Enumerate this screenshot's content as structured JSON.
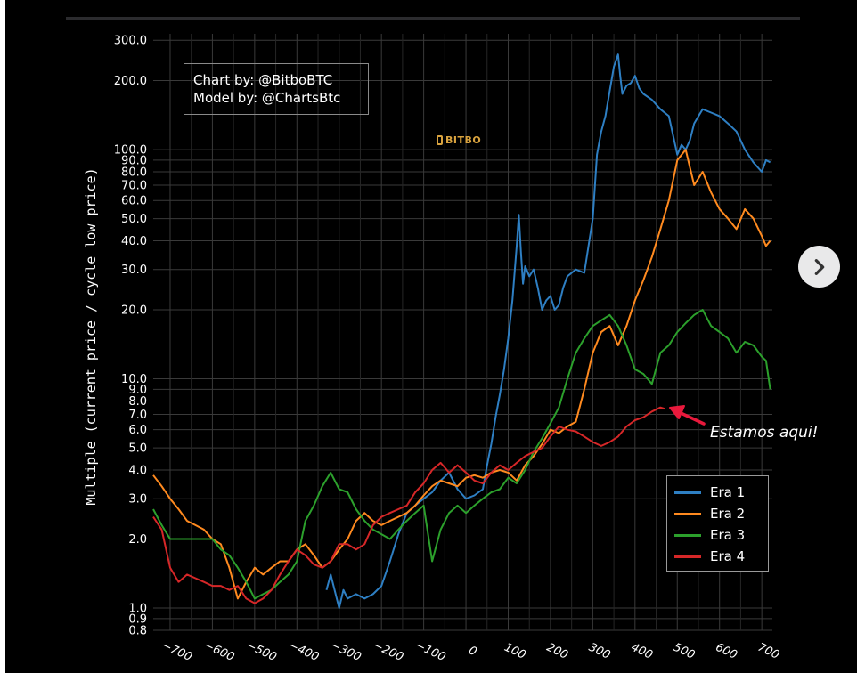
{
  "credits": {
    "chart_by": "Chart by: @BitboBTC",
    "model_by": "Model by: @ChartsBtc"
  },
  "logo": {
    "text": "BITBO",
    "icon": "bitbo-logo-icon"
  },
  "annotation": {
    "text": "Estamos aqui!",
    "color": "#e8193c"
  },
  "navigation": {
    "next_icon": "chevron-right-icon"
  },
  "chart_data": {
    "type": "line",
    "title": "",
    "xlabel": "",
    "ylabel": "Multiple (current price / cycle low price)",
    "yscale": "log",
    "xlim": [
      -740,
      725
    ],
    "ylim": [
      0.8,
      320
    ],
    "grid": true,
    "legend_position": "bottom-right",
    "y_ticks": [
      0.8,
      0.9,
      1.0,
      2.0,
      3.0,
      4.0,
      5.0,
      6.0,
      7.0,
      8.0,
      9.0,
      10.0,
      20.0,
      30.0,
      40.0,
      50.0,
      60.0,
      70.0,
      80.0,
      90.0,
      100.0,
      200.0,
      300.0
    ],
    "y_tick_labels": [
      "0.8",
      "0.9",
      "1.0",
      "2.0",
      "3.0",
      "4.0",
      "5.0",
      "6.0",
      "7.0",
      "8.0",
      "9.0",
      "10.0",
      "20.0",
      "30.0",
      "40.0",
      "50.0",
      "60.0",
      "70.0",
      "80.0",
      "90.0",
      "100.0",
      "200.0",
      "300.0"
    ],
    "x_ticks": [
      -700,
      -600,
      -500,
      -400,
      -300,
      -200,
      -100,
      0,
      100,
      200,
      300,
      400,
      500,
      600,
      700
    ],
    "x_tick_labels": [
      "−700",
      "−600",
      "−500",
      "−400",
      "−300",
      "−200",
      "−100",
      "0",
      "100",
      "200",
      "300",
      "400",
      "500",
      "600",
      "700"
    ],
    "series": [
      {
        "name": "Era 1",
        "color": "#2e7fc3",
        "x": [
          -330,
          -320,
          -300,
          -290,
          -280,
          -260,
          -240,
          -220,
          -200,
          -180,
          -160,
          -140,
          -120,
          -100,
          -80,
          -60,
          -40,
          -20,
          0,
          20,
          40,
          50,
          60,
          70,
          80,
          90,
          100,
          110,
          120,
          125,
          130,
          135,
          140,
          150,
          160,
          170,
          180,
          190,
          200,
          210,
          220,
          230,
          240,
          260,
          280,
          300,
          310,
          320,
          330,
          340,
          350,
          360,
          365,
          370,
          380,
          390,
          400,
          410,
          420,
          440,
          460,
          480,
          500,
          510,
          520,
          530,
          540,
          560,
          580,
          600,
          620,
          640,
          660,
          680,
          700,
          710,
          720
        ],
        "y": [
          1.2,
          1.4,
          1.0,
          1.2,
          1.1,
          1.15,
          1.1,
          1.15,
          1.25,
          1.6,
          2.1,
          2.6,
          2.8,
          3.0,
          3.2,
          3.6,
          3.9,
          3.3,
          3.0,
          3.1,
          3.3,
          4.2,
          5.2,
          6.8,
          8.5,
          11.0,
          15.0,
          22.0,
          38.0,
          52.0,
          36.0,
          26.0,
          31.0,
          28.0,
          30.0,
          25.0,
          20.0,
          22.0,
          23.0,
          20.0,
          21.0,
          25.0,
          28.0,
          30.0,
          29.0,
          50.0,
          95.0,
          120.0,
          140.0,
          180.0,
          230.0,
          260.0,
          210.0,
          175.0,
          190.0,
          195.0,
          210.0,
          185.0,
          175.0,
          165.0,
          150.0,
          140.0,
          95.0,
          105.0,
          100.0,
          110.0,
          130.0,
          150.0,
          145.0,
          140.0,
          130.0,
          120.0,
          100.0,
          88.0,
          80.0,
          90.0,
          88.0
        ]
      },
      {
        "name": "Era 2",
        "color": "#ff8a1f",
        "x": [
          -740,
          -720,
          -700,
          -680,
          -660,
          -640,
          -620,
          -600,
          -580,
          -560,
          -540,
          -520,
          -500,
          -480,
          -460,
          -440,
          -420,
          -400,
          -380,
          -360,
          -340,
          -320,
          -300,
          -280,
          -260,
          -240,
          -220,
          -200,
          -180,
          -160,
          -140,
          -120,
          -100,
          -80,
          -60,
          -40,
          -20,
          0,
          20,
          40,
          60,
          80,
          100,
          120,
          140,
          160,
          180,
          200,
          220,
          240,
          260,
          280,
          300,
          320,
          340,
          360,
          380,
          400,
          420,
          440,
          460,
          480,
          500,
          520,
          540,
          560,
          580,
          600,
          620,
          640,
          660,
          680,
          700,
          710,
          720
        ],
        "y": [
          3.8,
          3.4,
          3.0,
          2.7,
          2.4,
          2.3,
          2.2,
          2.0,
          1.9,
          1.5,
          1.1,
          1.3,
          1.5,
          1.4,
          1.5,
          1.6,
          1.6,
          1.8,
          1.9,
          1.7,
          1.5,
          1.6,
          1.8,
          2.0,
          2.4,
          2.6,
          2.4,
          2.3,
          2.4,
          2.5,
          2.6,
          2.8,
          3.1,
          3.4,
          3.6,
          3.5,
          3.4,
          3.7,
          3.8,
          3.7,
          3.9,
          4.0,
          3.9,
          3.6,
          4.2,
          4.6,
          5.2,
          6.0,
          5.8,
          6.2,
          6.5,
          9.0,
          13.0,
          16.0,
          17.0,
          14.0,
          17.0,
          22.0,
          27.0,
          34.0,
          45.0,
          60.0,
          90.0,
          100.0,
          70.0,
          80.0,
          65.0,
          55.0,
          50.0,
          45.0,
          55.0,
          50.0,
          42.0,
          38.0,
          40.0
        ]
      },
      {
        "name": "Era 3",
        "color": "#2ca02c",
        "x": [
          -740,
          -720,
          -700,
          -680,
          -660,
          -640,
          -620,
          -600,
          -580,
          -560,
          -540,
          -520,
          -500,
          -480,
          -460,
          -440,
          -420,
          -400,
          -380,
          -360,
          -340,
          -320,
          -300,
          -280,
          -260,
          -240,
          -220,
          -200,
          -180,
          -160,
          -140,
          -120,
          -100,
          -80,
          -60,
          -40,
          -20,
          0,
          20,
          40,
          60,
          80,
          100,
          120,
          140,
          160,
          180,
          200,
          220,
          240,
          260,
          280,
          300,
          320,
          340,
          360,
          380,
          400,
          420,
          440,
          460,
          480,
          500,
          520,
          540,
          560,
          580,
          600,
          620,
          640,
          660,
          680,
          700,
          710,
          720
        ],
        "y": [
          2.7,
          2.3,
          2.0,
          2.0,
          2.0,
          2.0,
          2.0,
          2.0,
          1.8,
          1.7,
          1.5,
          1.3,
          1.1,
          1.15,
          1.2,
          1.3,
          1.4,
          1.6,
          2.4,
          2.8,
          3.4,
          3.9,
          3.3,
          3.2,
          2.7,
          2.4,
          2.2,
          2.1,
          2.0,
          2.2,
          2.4,
          2.6,
          2.8,
          1.6,
          2.2,
          2.6,
          2.8,
          2.6,
          2.8,
          3.0,
          3.2,
          3.3,
          3.7,
          3.5,
          4.0,
          4.8,
          5.5,
          6.4,
          7.5,
          10.0,
          13.0,
          15.0,
          17.0,
          18.0,
          19.0,
          17.0,
          14.0,
          11.0,
          10.5,
          9.5,
          13.0,
          14.0,
          16.0,
          17.5,
          19.0,
          20.0,
          17.0,
          16.0,
          15.0,
          13.0,
          14.5,
          14.0,
          12.5,
          12.0,
          9.0
        ]
      },
      {
        "name": "Era 4",
        "color": "#d62728",
        "x": [
          -740,
          -720,
          -700,
          -680,
          -660,
          -640,
          -620,
          -600,
          -580,
          -560,
          -540,
          -520,
          -500,
          -480,
          -460,
          -440,
          -420,
          -400,
          -380,
          -360,
          -340,
          -320,
          -300,
          -280,
          -260,
          -240,
          -220,
          -200,
          -180,
          -160,
          -140,
          -120,
          -100,
          -80,
          -60,
          -40,
          -20,
          0,
          20,
          40,
          60,
          80,
          100,
          120,
          140,
          160,
          180,
          200,
          220,
          240,
          260,
          280,
          300,
          320,
          340,
          360,
          380,
          400,
          420,
          440,
          460,
          470
        ],
        "y": [
          2.5,
          2.2,
          1.5,
          1.3,
          1.4,
          1.35,
          1.3,
          1.25,
          1.25,
          1.2,
          1.25,
          1.1,
          1.05,
          1.1,
          1.2,
          1.4,
          1.6,
          1.8,
          1.7,
          1.55,
          1.5,
          1.6,
          1.9,
          1.9,
          1.8,
          1.9,
          2.3,
          2.5,
          2.6,
          2.7,
          2.8,
          3.2,
          3.5,
          4.0,
          4.3,
          3.9,
          4.2,
          3.9,
          3.6,
          3.5,
          3.9,
          4.2,
          4.0,
          4.3,
          4.6,
          4.8,
          5.0,
          5.6,
          6.2,
          6.0,
          5.9,
          5.6,
          5.3,
          5.1,
          5.3,
          5.6,
          6.2,
          6.6,
          6.8,
          7.2,
          7.5,
          7.4
        ]
      }
    ]
  }
}
